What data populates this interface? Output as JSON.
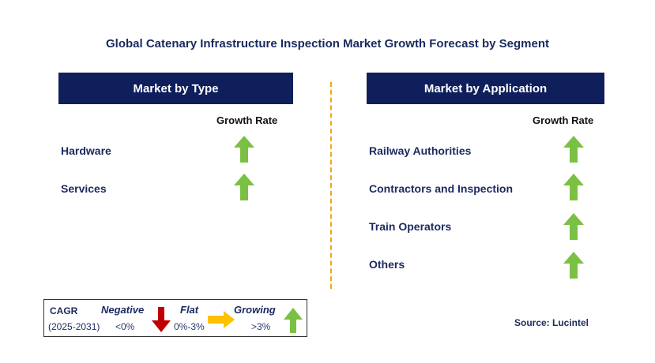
{
  "title": "Global Catenary Infrastructure Inspection Market Growth Forecast by Segment",
  "colors": {
    "header_bg": "#0f1f5c",
    "growing": "#7ac143",
    "negative": "#c00000",
    "flat": "#ffc000",
    "divider": "#f2a900"
  },
  "left_panel": {
    "header": "Market by Type",
    "growth_rate_label": "Growth Rate",
    "rows": [
      {
        "label": "Hardware",
        "trend": "growing"
      },
      {
        "label": "Services",
        "trend": "growing"
      }
    ]
  },
  "right_panel": {
    "header": "Market by Application",
    "growth_rate_label": "Growth Rate",
    "rows": [
      {
        "label": "Railway Authorities",
        "trend": "growing"
      },
      {
        "label": "Contractors and Inspection",
        "trend": "growing"
      },
      {
        "label": "Train Operators",
        "trend": "growing"
      },
      {
        "label": "Others",
        "trend": "growing"
      }
    ]
  },
  "legend": {
    "cagr_label": "CAGR",
    "period": "(2025-2031)",
    "negative": {
      "label": "Negative",
      "range": "<0%",
      "icon": "down-arrow-red"
    },
    "flat": {
      "label": "Flat",
      "range": "0%-3%",
      "icon": "right-arrow-yellow"
    },
    "growing": {
      "label": "Growing",
      "range": ">3%",
      "icon": "up-arrow-green"
    }
  },
  "source": "Source: Lucintel"
}
